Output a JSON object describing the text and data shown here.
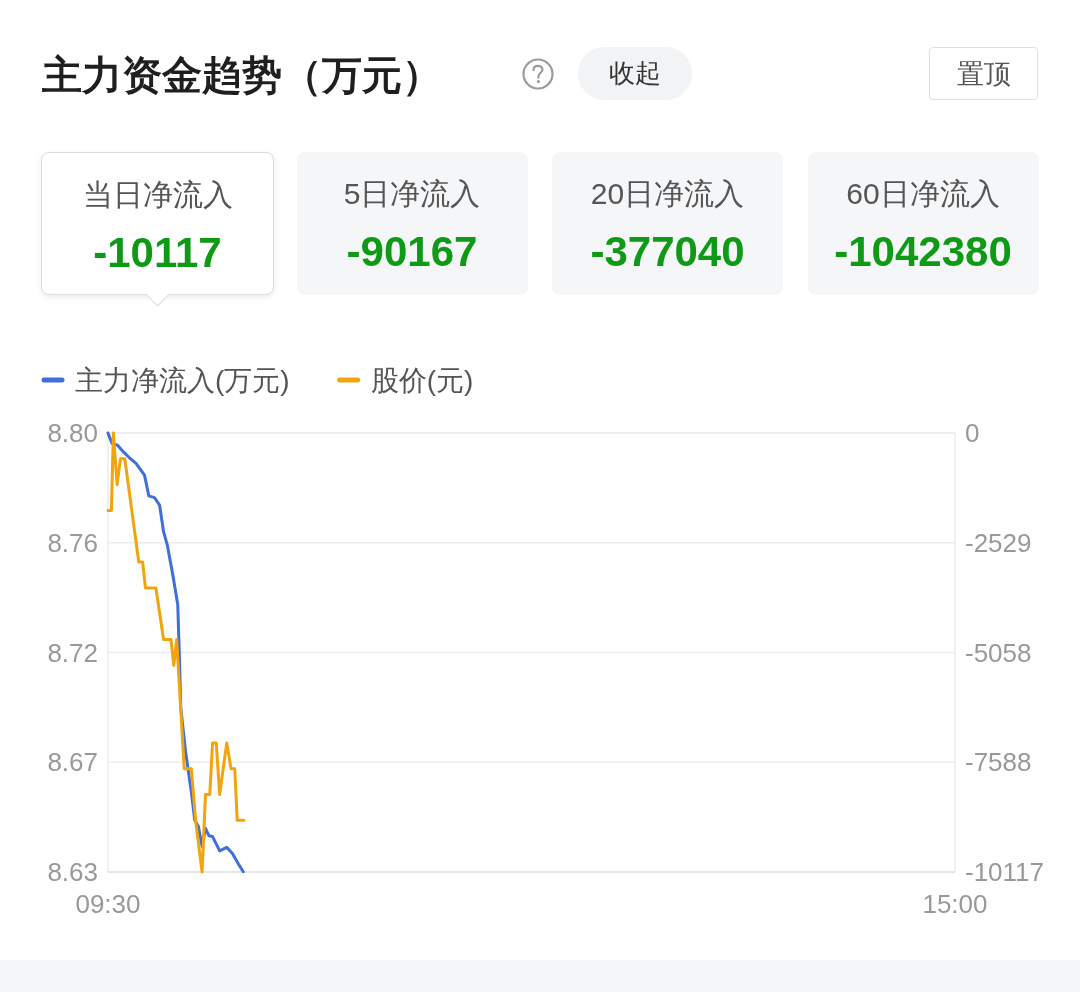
{
  "chart_data": [
    {
      "type": "other",
      "title": "主力资金趋势（万元）",
      "annotations": [
        "收起",
        "置顶",
        "当日净流入",
        "-10117",
        "5日净流入",
        "-90167",
        "20日净流入",
        "-377040",
        "60日净流入",
        "-1042380"
      ]
    },
    {
      "type": "line",
      "xlim": [
        9.5,
        15
      ],
      "xticks": [
        {
          "value": 9.5,
          "label": "09:30"
        },
        {
          "value": 15,
          "label": "15:00"
        }
      ],
      "ylim": [
        8.63,
        8.8
      ],
      "yticks": [
        8.63,
        {
          "value": 8.6725,
          "label": "8.67"
        },
        {
          "value": 8.715,
          "label": "8.72"
        },
        {
          "value": 8.7575,
          "label": "8.76"
        },
        {
          "value": 8.8,
          "label": "8.80"
        }
      ],
      "y2lim": [
        -10117,
        0
      ],
      "y2ticks": [
        -10117,
        {
          "value": -7587.75,
          "label": "-7588"
        },
        {
          "value": -5058.5,
          "label": "-5058"
        },
        {
          "value": -2529.25,
          "label": "-2529"
        },
        0
      ],
      "grid": "y",
      "legend": "top left",
      "series": [
        {
          "name": "主力净流入(万元)",
          "color": "#3f6fd9",
          "axis": "y2",
          "x": [
            9.5,
            9.526,
            9.562,
            9.599,
            9.636,
            9.682,
            9.737,
            9.765,
            9.802,
            9.835,
            9.861,
            9.885,
            9.921,
            9.953,
            9.964,
            9.973,
            10.004,
            10.041,
            10.063,
            10.087,
            10.111,
            10.133,
            10.155,
            10.179,
            10.225,
            10.271,
            10.308,
            10.345,
            10.378
          ],
          "values": [
            0,
            -240,
            -280,
            -430,
            -560,
            -700,
            -970,
            -1450,
            -1490,
            -1660,
            -2280,
            -2580,
            -3270,
            -3960,
            -5190,
            -6350,
            -7350,
            -8270,
            -8920,
            -9070,
            -9530,
            -9110,
            -9280,
            -9300,
            -9630,
            -9550,
            -9690,
            -9920,
            -10110
          ]
        },
        {
          "name": "股价(元)",
          "color": "#f2a40c",
          "x": [
            9.5,
            9.522,
            9.535,
            9.559,
            9.581,
            9.609,
            9.7,
            9.725,
            9.743,
            9.811,
            9.861,
            9.909,
            9.927,
            9.946,
            9.995,
            10.041,
            10.069,
            10.111,
            10.133,
            10.161,
            10.179,
            10.203,
            10.225,
            10.271,
            10.299,
            10.323,
            10.339,
            10.382
          ],
          "values": [
            8.77,
            8.77,
            8.8,
            8.78,
            8.79,
            8.79,
            8.75,
            8.75,
            8.74,
            8.74,
            8.72,
            8.72,
            8.71,
            8.72,
            8.67,
            8.67,
            8.65,
            8.63,
            8.66,
            8.66,
            8.68,
            8.68,
            8.66,
            8.68,
            8.67,
            8.67,
            8.65,
            8.65
          ]
        }
      ]
    }
  ]
}
